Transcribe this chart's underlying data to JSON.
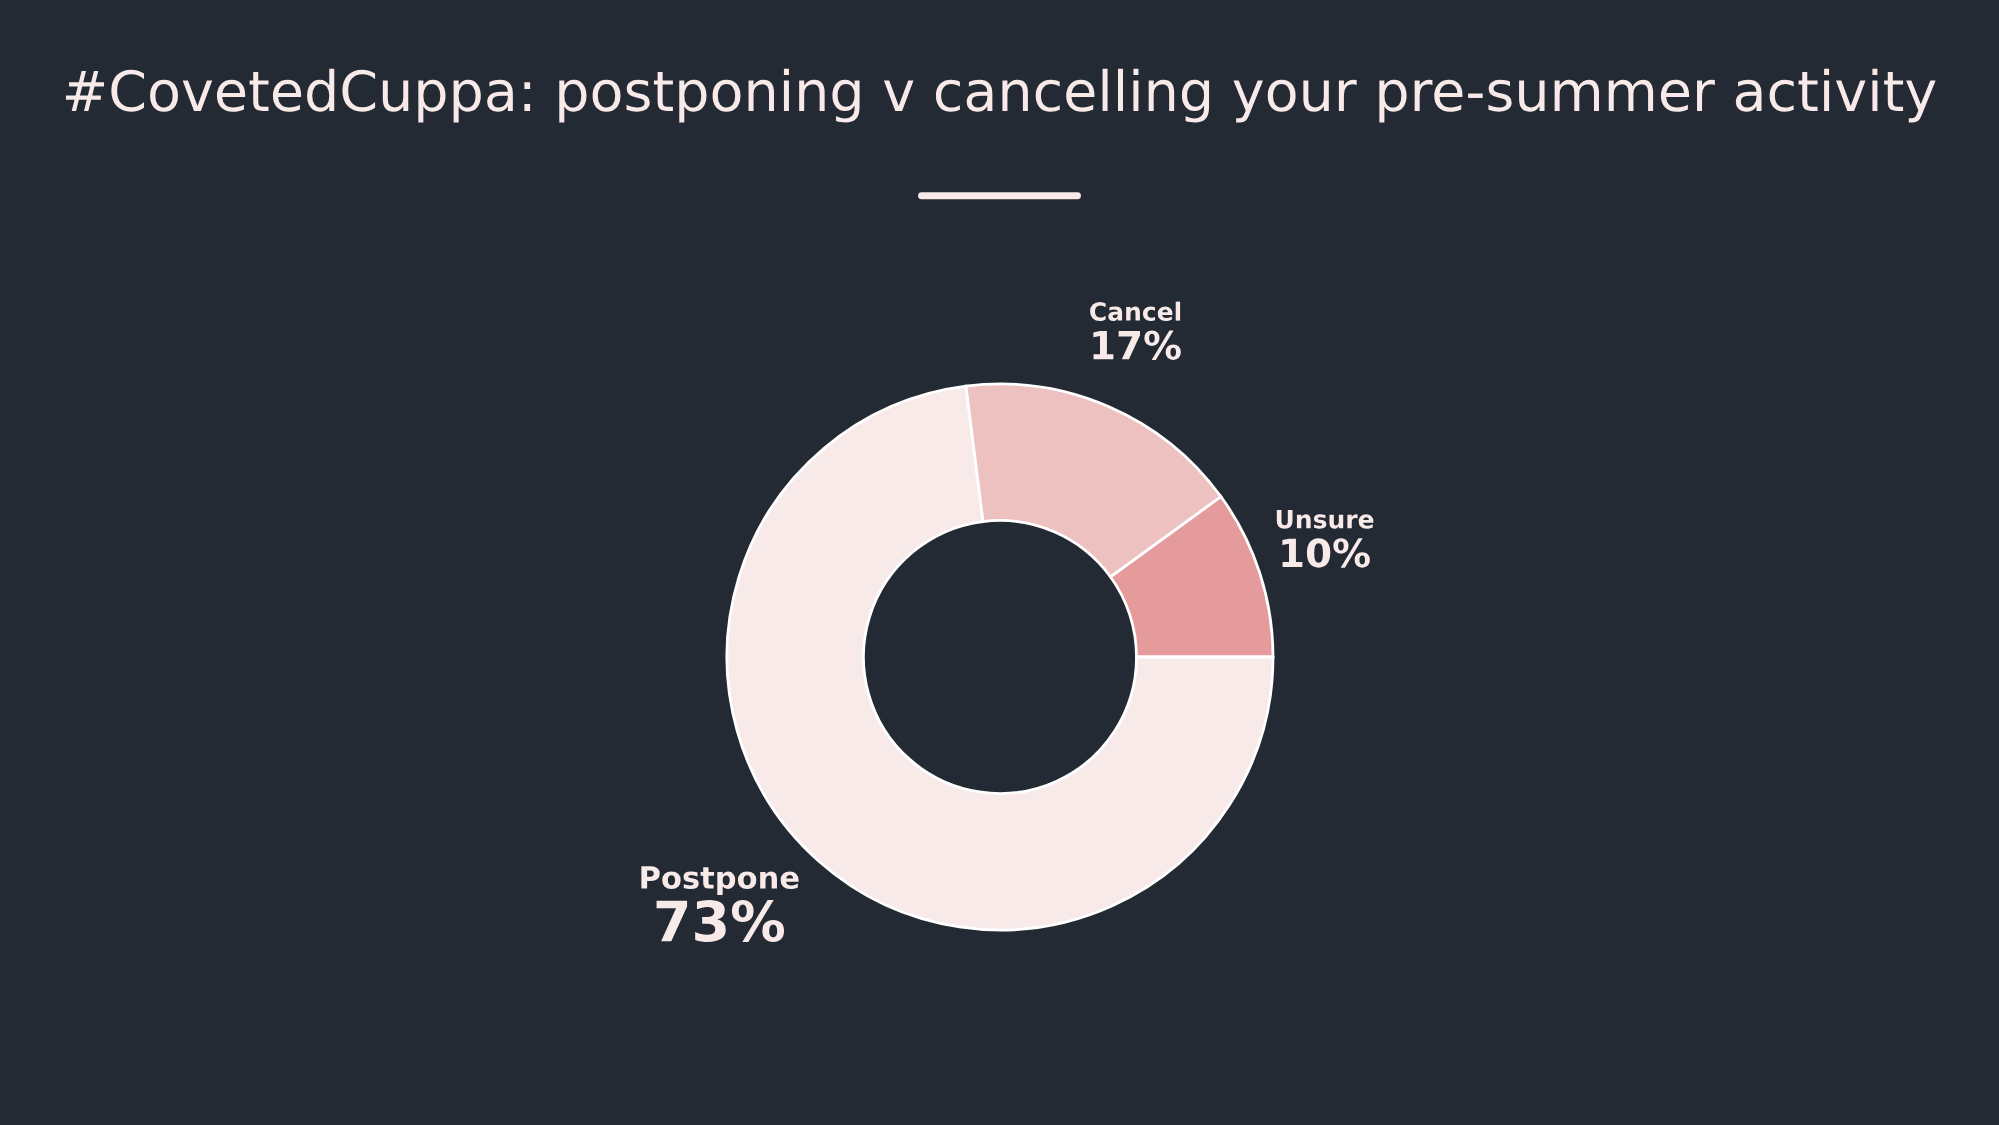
{
  "chart_data": {
    "type": "donut",
    "title": "#CovetedCuppa: postponing v cancelling your pre-summer activity",
    "categories": [
      "Unsure",
      "Cancel",
      "Postpone"
    ],
    "values": [
      10,
      17,
      73
    ],
    "colors": [
      "#e59b9b",
      "#eec1c1",
      "#f9eaea"
    ],
    "value_labels": [
      "10%",
      "17%",
      "73%"
    ]
  }
}
